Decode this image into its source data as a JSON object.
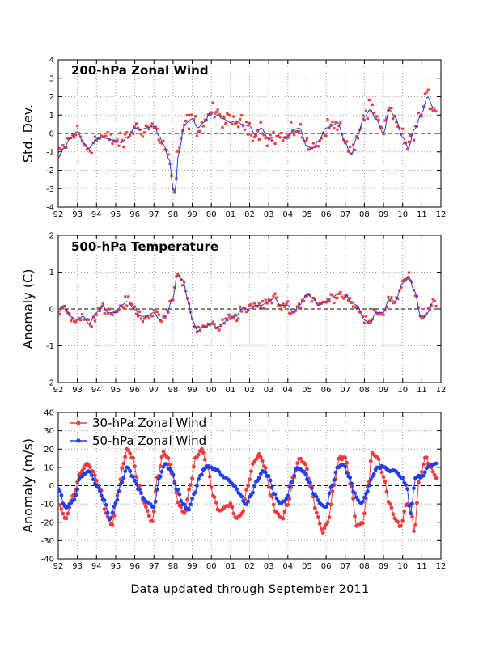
{
  "footer": "Data updated through September 2011",
  "colors": {
    "red": "#f03c3c",
    "blue": "#2040f0",
    "bluethin": "#1f3fe0",
    "grid": "#9a9a9a"
  },
  "chart_data": [
    {
      "type": "scatter",
      "title": "200-hPa Zonal Wind",
      "ylabel": "Std. Dev.",
      "ylim": [
        -4,
        4
      ],
      "yticks": [
        -4,
        -3,
        -2,
        -1,
        0,
        1,
        2,
        3,
        4
      ],
      "xlim": [
        1992,
        2012
      ],
      "xtick_labels": [
        "92",
        "93",
        "94",
        "95",
        "96",
        "97",
        "98",
        "99",
        "00",
        "01",
        "02",
        "03",
        "04",
        "05",
        "06",
        "07",
        "08",
        "09",
        "10",
        "11",
        "12"
      ],
      "grid": true,
      "zero_line": true,
      "series": [
        {
          "kind": "monthly points",
          "color": "red"
        },
        {
          "kind": "running mean line",
          "color": "blue"
        }
      ],
      "running_mean_knots": {
        "x": [
          1992.0,
          1992.3,
          1992.6,
          1993.0,
          1993.3,
          1993.6,
          1994.0,
          1994.3,
          1994.6,
          1995.0,
          1995.3,
          1995.6,
          1996.0,
          1996.3,
          1996.6,
          1997.0,
          1997.3,
          1997.5,
          1997.8,
          1998.0,
          1998.1,
          1998.3,
          1998.6,
          1999.0,
          1999.3,
          1999.6,
          2000.0,
          2000.3,
          2000.6,
          2001.0,
          2001.3,
          2001.6,
          2002.0,
          2002.3,
          2002.6,
          2003.0,
          2003.3,
          2003.6,
          2004.0,
          2004.3,
          2004.6,
          2005.0,
          2005.3,
          2005.6,
          2006.0,
          2006.3,
          2006.6,
          2007.0,
          2007.3,
          2007.6,
          2008.0,
          2008.3,
          2008.6,
          2009.0,
          2009.3,
          2009.6,
          2010.0,
          2010.3,
          2010.6,
          2011.0,
          2011.3,
          2011.6
        ],
        "y": [
          -1.3,
          -0.8,
          -0.3,
          0.1,
          -0.5,
          -0.8,
          -0.3,
          -0.2,
          -0.3,
          -0.4,
          -0.5,
          -0.2,
          0.3,
          0.2,
          0.3,
          0.4,
          -0.2,
          -0.6,
          -1.4,
          -3.0,
          -3.2,
          -1.0,
          0.5,
          0.8,
          0.3,
          0.6,
          1.2,
          1.0,
          0.8,
          0.6,
          0.7,
          0.5,
          0.4,
          -0.1,
          0.3,
          -0.3,
          -0.2,
          -0.2,
          -0.3,
          0.2,
          0.3,
          -0.7,
          -0.8,
          -0.4,
          0.3,
          0.4,
          0.6,
          -0.5,
          -1.2,
          -0.2,
          0.9,
          1.3,
          0.8,
          0.0,
          1.3,
          0.9,
          -0.2,
          -0.8,
          0.2,
          1.1,
          2.0,
          1.4
        ]
      },
      "scatter_noise": 0.4
    },
    {
      "type": "scatter",
      "title": "500-hPa Temperature",
      "ylabel": "Anomaly (C)",
      "ylim": [
        -2,
        2
      ],
      "yticks": [
        -2,
        -1,
        0,
        1,
        2
      ],
      "xlim": [
        1992,
        2012
      ],
      "xtick_labels": [
        "92",
        "93",
        "94",
        "95",
        "96",
        "97",
        "98",
        "99",
        "00",
        "01",
        "02",
        "03",
        "04",
        "05",
        "06",
        "07",
        "08",
        "09",
        "10",
        "11",
        "12"
      ],
      "grid": true,
      "zero_line": true,
      "series": [
        {
          "kind": "monthly points",
          "color": "red"
        },
        {
          "kind": "running mean line",
          "color": "blue"
        }
      ],
      "running_mean_knots": {
        "x": [
          1992.0,
          1992.3,
          1992.6,
          1993.0,
          1993.3,
          1993.6,
          1994.0,
          1994.3,
          1994.6,
          1995.0,
          1995.3,
          1995.6,
          1996.0,
          1996.3,
          1996.6,
          1997.0,
          1997.3,
          1997.6,
          1998.0,
          1998.2,
          1998.5,
          1998.8,
          1999.0,
          1999.3,
          1999.6,
          2000.0,
          2000.3,
          2000.6,
          2001.0,
          2001.3,
          2001.6,
          2002.0,
          2002.3,
          2002.6,
          2003.0,
          2003.3,
          2003.6,
          2004.0,
          2004.3,
          2004.6,
          2005.0,
          2005.3,
          2005.6,
          2006.0,
          2006.3,
          2006.6,
          2007.0,
          2007.3,
          2007.6,
          2008.0,
          2008.3,
          2008.6,
          2009.0,
          2009.3,
          2009.6,
          2010.0,
          2010.3,
          2010.6,
          2011.0,
          2011.3,
          2011.6
        ],
        "y": [
          -0.1,
          0.1,
          -0.2,
          -0.3,
          -0.2,
          -0.4,
          -0.1,
          0.1,
          -0.1,
          -0.1,
          0.1,
          0.2,
          0.0,
          -0.2,
          -0.2,
          -0.1,
          -0.3,
          -0.2,
          0.3,
          0.9,
          0.8,
          0.2,
          -0.3,
          -0.6,
          -0.5,
          -0.4,
          -0.5,
          -0.4,
          -0.2,
          -0.2,
          0.0,
          0.0,
          0.1,
          0.1,
          0.2,
          0.3,
          0.1,
          0.1,
          -0.1,
          0.1,
          0.4,
          0.3,
          0.1,
          0.2,
          0.3,
          0.4,
          0.4,
          0.2,
          0.1,
          -0.3,
          -0.4,
          -0.1,
          -0.1,
          0.3,
          0.2,
          0.7,
          0.9,
          0.5,
          -0.3,
          -0.1,
          0.2
        ]
      },
      "scatter_noise": 0.12
    },
    {
      "type": "line",
      "title": "",
      "ylabel": "Anomaly (m/s)",
      "ylim": [
        -40,
        40
      ],
      "yticks": [
        -40,
        -30,
        -20,
        -10,
        0,
        10,
        20,
        30,
        40
      ],
      "xlim": [
        1992,
        2012
      ],
      "xtick_labels": [
        "92",
        "93",
        "94",
        "95",
        "96",
        "97",
        "98",
        "99",
        "00",
        "01",
        "02",
        "03",
        "04",
        "05",
        "06",
        "07",
        "08",
        "09",
        "10",
        "11",
        "12"
      ],
      "grid": true,
      "zero_line": true,
      "legend": "top-left",
      "series": [
        {
          "name": "30-hPa Zonal Wind",
          "color": "red",
          "knots": {
            "x": [
              1992.0,
              1992.4,
              1992.8,
              1993.2,
              1993.5,
              1993.8,
              1994.2,
              1994.5,
              1994.8,
              1995.1,
              1995.4,
              1995.6,
              1995.9,
              1996.2,
              1996.5,
              1996.9,
              1997.2,
              1997.5,
              1997.7,
              1998.0,
              1998.3,
              1998.6,
              1998.9,
              1999.2,
              1999.5,
              1999.8,
              2000.1,
              2000.4,
              2000.7,
              2001.0,
              2001.3,
              2001.6,
              2001.9,
              2002.2,
              2002.5,
              2002.8,
              2003.1,
              2003.4,
              2003.7,
              2004.0,
              2004.3,
              2004.6,
              2004.9,
              2005.2,
              2005.5,
              2005.8,
              2006.1,
              2006.4,
              2006.7,
              2007.0,
              2007.3,
              2007.6,
              2007.9,
              2008.2,
              2008.4,
              2008.7,
              2009.0,
              2009.3,
              2009.6,
              2009.9,
              2010.2,
              2010.4,
              2010.6,
              2010.9,
              2011.2,
              2011.5,
              2011.7
            ],
            "y": [
              -10,
              -18,
              -5,
              8,
              12,
              8,
              -2,
              -15,
              -22,
              -5,
              12,
              20,
              15,
              0,
              -10,
              -20,
              5,
              18,
              16,
              5,
              -10,
              -15,
              0,
              15,
              20,
              10,
              -5,
              -14,
              -12,
              -10,
              -18,
              -15,
              0,
              12,
              17,
              10,
              -5,
              -15,
              -18,
              -10,
              5,
              15,
              12,
              0,
              -15,
              -25,
              -20,
              0,
              15,
              15,
              0,
              -22,
              -20,
              0,
              18,
              15,
              5,
              -10,
              -18,
              -22,
              -10,
              -10,
              -25,
              5,
              15,
              10,
              5
            ]
          }
        },
        {
          "name": "50-hPa Zonal Wind",
          "color": "blue",
          "knots": {
            "x": [
              1992.0,
              1992.4,
              1992.8,
              1993.2,
              1993.6,
              1994.0,
              1994.4,
              1994.7,
              1995.0,
              1995.3,
              1995.6,
              1995.9,
              1996.2,
              1996.5,
              1996.8,
              1997.0,
              1997.3,
              1997.6,
              1997.9,
              1998.2,
              1998.5,
              1998.8,
              1999.1,
              1999.4,
              1999.7,
              2000.0,
              2000.3,
              2000.6,
              2000.9,
              2001.2,
              2001.5,
              2001.8,
              2002.1,
              2002.4,
              2002.7,
              2003.0,
              2003.3,
              2003.6,
              2003.9,
              2004.2,
              2004.5,
              2004.8,
              2005.1,
              2005.4,
              2005.7,
              2006.0,
              2006.3,
              2006.6,
              2006.9,
              2007.2,
              2007.5,
              2007.8,
              2008.1,
              2008.4,
              2008.7,
              2009.0,
              2009.3,
              2009.6,
              2009.9,
              2010.2,
              2010.4,
              2010.7,
              2011.0,
              2011.3,
              2011.6
            ],
            "y": [
              -2,
              -12,
              -8,
              5,
              8,
              0,
              -8,
              -18,
              -10,
              2,
              10,
              5,
              -2,
              -8,
              -10,
              -12,
              5,
              12,
              8,
              -2,
              -10,
              -13,
              -5,
              5,
              10,
              10,
              8,
              5,
              3,
              0,
              -5,
              -10,
              -5,
              3,
              8,
              5,
              -5,
              -10,
              -8,
              2,
              10,
              8,
              2,
              -5,
              -10,
              -12,
              0,
              10,
              12,
              5,
              -5,
              -10,
              -5,
              5,
              10,
              10,
              8,
              8,
              5,
              0,
              -15,
              5,
              5,
              10,
              12
            ]
          }
        }
      ]
    }
  ]
}
